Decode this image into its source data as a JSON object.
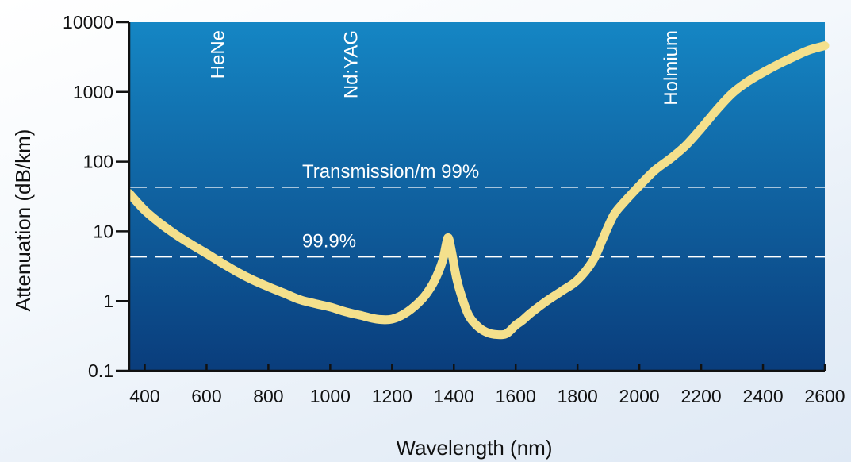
{
  "chart_data": {
    "type": "line",
    "title": "",
    "xlabel": "Wavelength (nm)",
    "ylabel": "Attenuation (dB/km)",
    "xlim": [
      350,
      2600
    ],
    "ylim": [
      0.1,
      10000
    ],
    "yscale": "log",
    "x_ticks": [
      400,
      600,
      800,
      1000,
      1200,
      1400,
      1600,
      1800,
      2000,
      2200,
      2400,
      2600
    ],
    "y_ticks": [
      {
        "value": 0.1,
        "label": "0.1"
      },
      {
        "value": 1,
        "label": "1"
      },
      {
        "value": 10,
        "label": "10"
      },
      {
        "value": 100,
        "label": "100"
      },
      {
        "value": 1000,
        "label": "1000"
      },
      {
        "value": 10000,
        "label": "10000"
      }
    ],
    "series": [
      {
        "x": [
          350,
          400,
          450,
          500,
          550,
          600,
          650,
          700,
          750,
          800,
          850,
          900,
          950,
          1000,
          1050,
          1100,
          1150,
          1200,
          1250,
          1300,
          1330,
          1350,
          1365,
          1375,
          1380,
          1385,
          1395,
          1410,
          1430,
          1450,
          1480,
          1510,
          1540,
          1570,
          1600,
          1620,
          1650,
          1700,
          1750,
          1800,
          1850,
          1880,
          1900,
          1920,
          1950,
          2000,
          2050,
          2100,
          2150,
          2200,
          2250,
          2300,
          2350,
          2400,
          2450,
          2500,
          2550,
          2600
        ],
        "y": [
          35,
          20,
          13,
          9,
          6.5,
          4.8,
          3.5,
          2.6,
          2.0,
          1.6,
          1.3,
          1.05,
          0.92,
          0.82,
          0.7,
          0.62,
          0.55,
          0.55,
          0.7,
          1.1,
          1.7,
          2.6,
          4.0,
          6.5,
          8.0,
          7.5,
          4.5,
          2.0,
          1.0,
          0.6,
          0.42,
          0.35,
          0.33,
          0.34,
          0.45,
          0.52,
          0.68,
          1.0,
          1.4,
          2.0,
          3.8,
          7.5,
          12,
          18,
          26,
          45,
          75,
          110,
          170,
          300,
          550,
          950,
          1400,
          1900,
          2500,
          3200,
          4000,
          4600
        ]
      }
    ],
    "reference_lines": [
      {
        "y": 43,
        "label": "Transmission/m 99%"
      },
      {
        "y": 4.3,
        "label": "99.9%"
      }
    ],
    "annotations": [
      {
        "text": "HeNe",
        "x": 633
      },
      {
        "text": "Nd:YAG",
        "x": 1064
      },
      {
        "text": "Holmium",
        "x": 2100
      }
    ],
    "grid": false,
    "colors": {
      "curve": "#f4e08c",
      "plot_bg_top": "#1586c4",
      "plot_bg_bottom": "#0a3d7c",
      "annotation_text": "#ffffff",
      "reference_line": "#ffffff"
    }
  }
}
